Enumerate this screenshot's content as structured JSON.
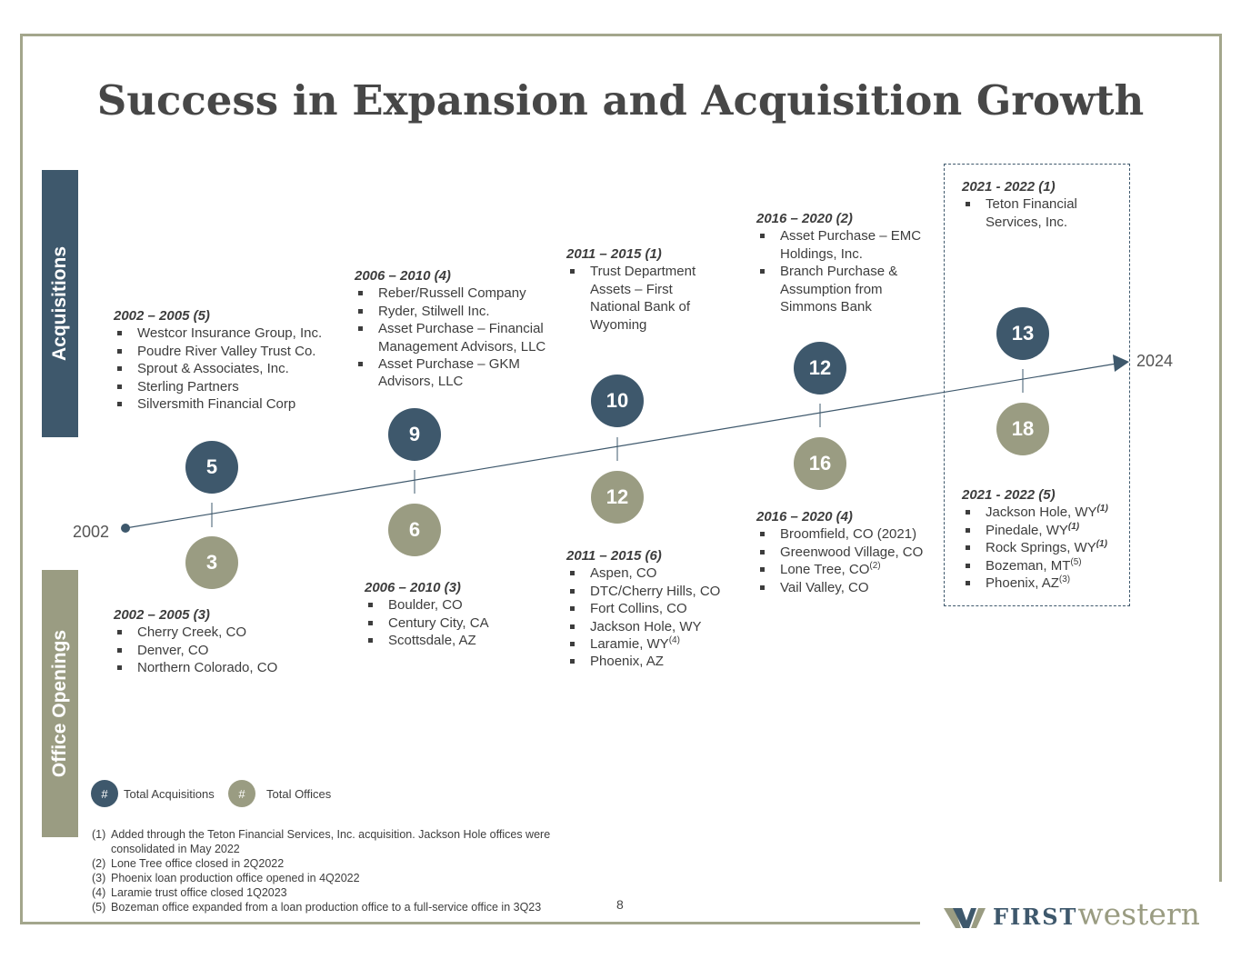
{
  "title": "Success in Expansion and Acquisition Growth",
  "side_labels": {
    "acquisitions": "Acquisitions",
    "office_openings": "Office Openings"
  },
  "timeline": {
    "start_year": "2002",
    "end_year": "2024"
  },
  "periods": [
    {
      "acq_count": "5",
      "off_count": "3",
      "acq_header": "2002 – 2005 (5)",
      "acq_items": [
        "Westcor Insurance Group, Inc.",
        "Poudre River Valley Trust Co.",
        "Sprout & Associates, Inc.",
        "Sterling Partners",
        "Silversmith Financial Corp"
      ],
      "off_header": "2002 – 2005 (3)",
      "off_items": [
        "Cherry Creek, CO",
        "Denver, CO",
        "Northern Colorado, CO"
      ]
    },
    {
      "acq_count": "9",
      "off_count": "6",
      "acq_header": "2006 – 2010 (4)",
      "acq_items": [
        "Reber/Russell Company",
        "Ryder, Stilwell Inc.",
        "Asset Purchase – Financial Management Advisors, LLC",
        "Asset Purchase – GKM Advisors, LLC"
      ],
      "off_header": "2006 – 2010 (3)",
      "off_items": [
        "Boulder, CO",
        "Century City, CA",
        "Scottsdale, AZ"
      ]
    },
    {
      "acq_count": "10",
      "off_count": "12",
      "acq_header": "2011 – 2015 (1)",
      "acq_items": [
        "Trust Department Assets – First National Bank of Wyoming"
      ],
      "off_header": "2011 – 2015 (6)",
      "off_items": [
        "Aspen, CO",
        "DTC/Cherry Hills, CO",
        "Fort Collins, CO",
        "Jackson Hole, WY",
        "Laramie, WY",
        "Phoenix, AZ"
      ],
      "off_sups": [
        "",
        "",
        "",
        "",
        "(4)",
        ""
      ]
    },
    {
      "acq_count": "12",
      "off_count": "16",
      "acq_header": "2016 – 2020 (2)",
      "acq_items": [
        "Asset Purchase – EMC Holdings, Inc.",
        "Branch Purchase & Assumption from Simmons Bank"
      ],
      "off_header": "2016 – 2020 (4)",
      "off_items": [
        "Broomfield, CO (2021)",
        "Greenwood Village, CO",
        "Lone Tree, CO",
        "Vail Valley, CO"
      ],
      "off_sups": [
        "",
        "",
        "(2)",
        ""
      ]
    },
    {
      "acq_count": "13",
      "off_count": "18",
      "acq_header": "2021 - 2022 (1)",
      "acq_items": [
        "Teton Financial Services, Inc."
      ],
      "off_header": "2021 - 2022 (5)",
      "off_items": [
        "Jackson Hole, WY",
        "Pinedale, WY",
        "Rock Springs, WY",
        "Bozeman, MT",
        "Phoenix, AZ"
      ],
      "off_sups": [
        "(1)",
        "(1)",
        "(1)",
        "(5)",
        "(3)"
      ]
    }
  ],
  "legend": {
    "symbol": "#",
    "acquisitions": "Total Acquisitions",
    "offices": "Total Offices"
  },
  "footnotes": [
    {
      "num": "(1)",
      "text": "Added through the Teton Financial Services, Inc. acquisition. Jackson Hole offices were consolidated in May 2022"
    },
    {
      "num": "(2)",
      "text": "Lone Tree office closed in 2Q2022"
    },
    {
      "num": "(3)",
      "text": "Phoenix loan production office opened in 4Q2022"
    },
    {
      "num": "(4)",
      "text": "Laramie trust office closed 1Q2023"
    },
    {
      "num": "(5)",
      "text": "Bozeman office expanded from a loan production office to a full-service office in 3Q23"
    }
  ],
  "page_number": "8",
  "logo": {
    "first": "FIRST",
    "western": "western"
  },
  "colors": {
    "navy": "#3e586c",
    "olive": "#9a9c82",
    "frame": "#a3a68c"
  }
}
